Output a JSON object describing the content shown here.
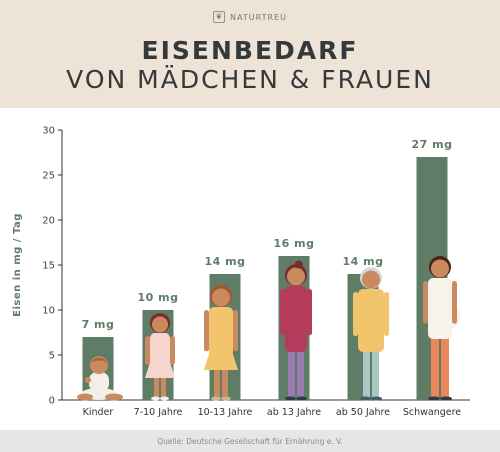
{
  "brand": {
    "name": "NATURTREU",
    "logo_icon": "leaf-logo-icon"
  },
  "title": {
    "line1": "EISENBEDARF",
    "line2": "VON MÄDCHEN & FRAUEN"
  },
  "footer": {
    "source": "Quelle: Deutsche Gesellschaft für Ernährung e. V."
  },
  "colors": {
    "header_bg": "#ede3d6",
    "bar": "#5f7c67",
    "label": "#5f7c67",
    "text": "#35393a",
    "footer_bg": "#e6e6e6"
  },
  "chart_data": {
    "type": "bar",
    "ylabel": "Eisen in mg / Tag",
    "ylim": [
      0,
      30
    ],
    "yticks": [
      0,
      5,
      10,
      15,
      20,
      25,
      30
    ],
    "grid": false,
    "categories": [
      "Kinder",
      "7-10 Jahre",
      "10-13 Jahre",
      "ab 13 Jahre",
      "ab 50 Jahre",
      "Schwangere"
    ],
    "values": [
      7,
      10,
      14,
      16,
      14,
      27
    ],
    "value_labels": [
      "7 mg",
      "10 mg",
      "14 mg",
      "16 mg",
      "14 mg",
      "27 mg"
    ],
    "figures": [
      "baby-illustration",
      "girl-illustration",
      "preteen-girl-illustration",
      "teen-girl-illustration",
      "older-woman-illustration",
      "pregnant-woman-illustration"
    ]
  }
}
